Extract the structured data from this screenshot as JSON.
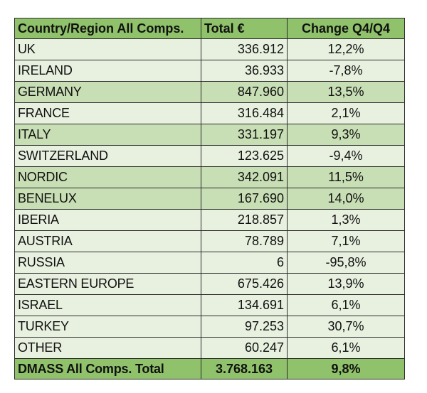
{
  "table": {
    "headers": {
      "country": "Country/Region All Comps.",
      "total": "Total €",
      "change": "Change Q4/Q4"
    },
    "rows": [
      {
        "country": "UK",
        "total": "336.912",
        "change": "12,2%"
      },
      {
        "country": "IRELAND",
        "total": "36.933",
        "change": "-7,8%"
      },
      {
        "country": "GERMANY",
        "total": "847.960",
        "change": "13,5%"
      },
      {
        "country": "FRANCE",
        "total": "316.484",
        "change": "2,1%"
      },
      {
        "country": "ITALY",
        "total": "331.197",
        "change": "9,3%"
      },
      {
        "country": "SWITZERLAND",
        "total": "123.625",
        "change": "-9,4%"
      },
      {
        "country": "NORDIC",
        "total": "342.091",
        "change": "11,5%"
      },
      {
        "country": "BENELUX",
        "total": "167.690",
        "change": "14,0%"
      },
      {
        "country": "IBERIA",
        "total": "218.857",
        "change": "1,3%"
      },
      {
        "country": "AUSTRIA",
        "total": "78.789",
        "change": "7,1%"
      },
      {
        "country": "RUSSIA",
        "total": "6",
        "change": "-95,8%"
      },
      {
        "country": "EASTERN EUROPE",
        "total": "675.426",
        "change": "13,9%"
      },
      {
        "country": "ISRAEL",
        "total": "134.691",
        "change": "6,1%"
      },
      {
        "country": "TURKEY",
        "total": "97.253",
        "change": "30,7%"
      },
      {
        "country": "OTHER",
        "total": "60.247",
        "change": "6,1%"
      }
    ],
    "footer": {
      "country": "DMASS All Comps. Total",
      "total": "3.768.163",
      "change": "9,8%"
    }
  },
  "colors": {
    "header_bg": "#8fc26a",
    "row_dark": "#c8deb4",
    "row_light": "#e8f1e0",
    "border": "#2b2b2b"
  }
}
